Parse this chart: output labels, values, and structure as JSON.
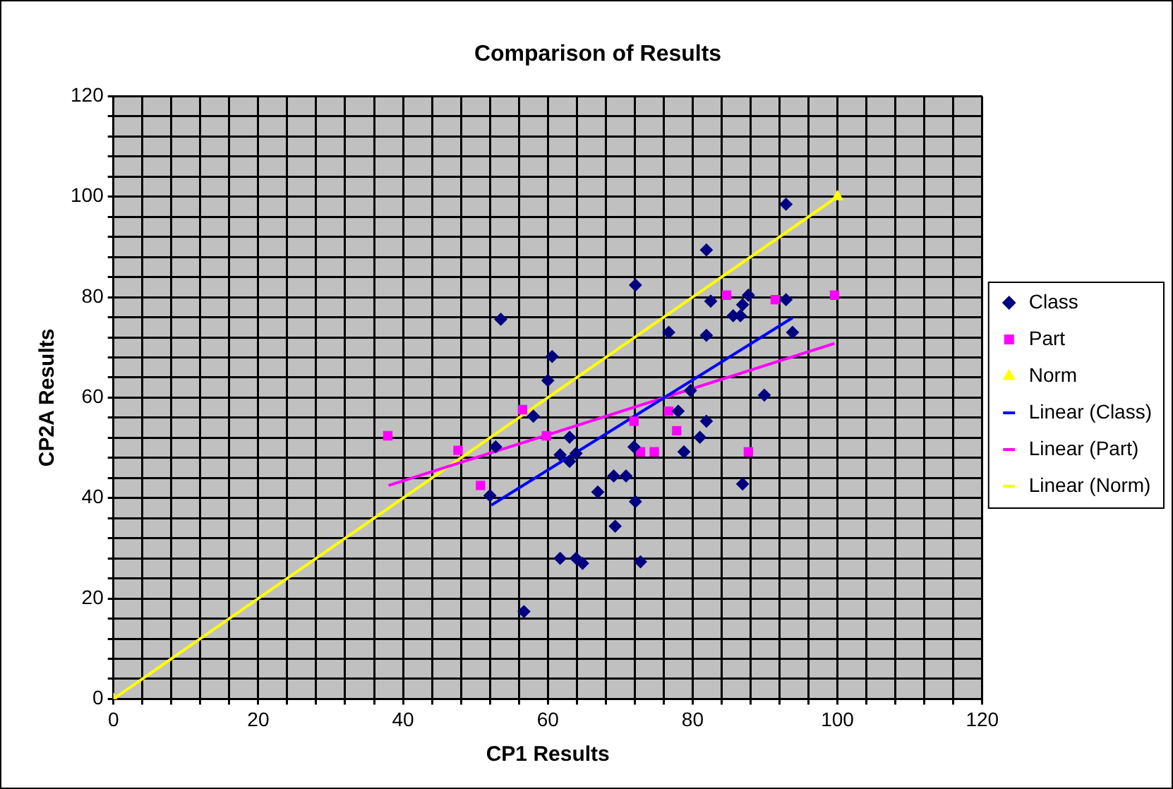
{
  "chart_data": {
    "type": "scatter",
    "title": "Comparison of Results",
    "xlabel": "CP1 Results",
    "ylabel": "CP2A Results",
    "xlim": [
      0,
      120
    ],
    "ylim": [
      0,
      120
    ],
    "xticks": [
      0,
      {
        "value": 4,
        "label": null
      },
      {
        "value": 8,
        "label": null
      },
      {
        "value": 12,
        "label": null
      },
      {
        "value": 16,
        "label": null
      },
      20,
      {
        "value": 24,
        "label": null
      },
      {
        "value": 28,
        "label": null
      },
      {
        "value": 32,
        "label": null
      },
      {
        "value": 36,
        "label": null
      },
      40,
      {
        "value": 44,
        "label": null
      },
      {
        "value": 48,
        "label": null
      },
      {
        "value": 52,
        "label": null
      },
      {
        "value": 56,
        "label": null
      },
      60,
      {
        "value": 64,
        "label": null
      },
      {
        "value": 68,
        "label": null
      },
      {
        "value": 72,
        "label": null
      },
      {
        "value": 76,
        "label": null
      },
      80,
      {
        "value": 84,
        "label": null
      },
      {
        "value": 88,
        "label": null
      },
      {
        "value": 92,
        "label": null
      },
      {
        "value": 96,
        "label": null
      },
      100,
      {
        "value": 104,
        "label": null
      },
      {
        "value": 108,
        "label": null
      },
      {
        "value": 112,
        "label": null
      },
      {
        "value": 116,
        "label": null
      },
      120
    ],
    "yticks": [
      0,
      {
        "value": 4,
        "label": null
      },
      {
        "value": 8,
        "label": null
      },
      {
        "value": 12,
        "label": null
      },
      {
        "value": 16,
        "label": null
      },
      20,
      {
        "value": 24,
        "label": null
      },
      {
        "value": 28,
        "label": null
      },
      {
        "value": 32,
        "label": null
      },
      {
        "value": 36,
        "label": null
      },
      40,
      {
        "value": 44,
        "label": null
      },
      {
        "value": 48,
        "label": null
      },
      {
        "value": 52,
        "label": null
      },
      {
        "value": 56,
        "label": null
      },
      60,
      {
        "value": 64,
        "label": null
      },
      {
        "value": 68,
        "label": null
      },
      {
        "value": 72,
        "label": null
      },
      {
        "value": 76,
        "label": null
      },
      80,
      {
        "value": 84,
        "label": null
      },
      {
        "value": 88,
        "label": null
      },
      {
        "value": 92,
        "label": null
      },
      {
        "value": 96,
        "label": null
      },
      100,
      {
        "value": 104,
        "label": null
      },
      {
        "value": 108,
        "label": null
      },
      {
        "value": 112,
        "label": null
      },
      {
        "value": 116,
        "label": null
      },
      120
    ],
    "grid": true,
    "legend": "right",
    "series": [
      {
        "name": "Class",
        "type": "scatter",
        "marker": "diamond",
        "color": "#000080",
        "x": [
          53.5,
          60.6,
          60,
          58,
          63,
          52.8,
          61.7,
          63.9,
          63,
          69.1,
          66.9,
          69.3,
          52,
          61.7,
          63.9,
          64.8,
          56.7,
          92.9,
          81.9,
          72.1,
          82.5,
          87.7,
          86.9,
          85.6,
          86.6,
          92.9,
          76.7,
          81.9,
          93.8,
          89.9,
          79.7,
          78,
          81.9,
          81,
          71.9,
          78.8,
          70.8,
          72.1,
          72.8,
          86.9
        ],
        "values": [
          75.6,
          68.2,
          63.4,
          56.3,
          52.1,
          50.2,
          48.6,
          48.9,
          47.3,
          44.4,
          41.2,
          34.4,
          40.5,
          28,
          28,
          27,
          17.4,
          98.5,
          89.4,
          82.4,
          79.2,
          80.4,
          78.5,
          76.3,
          76.3,
          79.5,
          73,
          72.4,
          73,
          60.5,
          61.4,
          57.3,
          55.3,
          52.1,
          50.2,
          49.2,
          44.4,
          39.3,
          27.3,
          42.8
        ]
      },
      {
        "name": "Part",
        "type": "scatter",
        "marker": "square",
        "color": "#ff00ff",
        "x": [
          37.9,
          47.6,
          50.7,
          56.5,
          59.8,
          71.9,
          76.7,
          77.8,
          72.8,
          74.7,
          87.7,
          84.7,
          91.4,
          99.6
        ],
        "values": [
          52.4,
          49.5,
          42.5,
          57.6,
          52.4,
          55.3,
          57.3,
          53.4,
          49.2,
          49.2,
          49.2,
          80.4,
          79.5,
          80.4
        ]
      },
      {
        "name": "Norm",
        "type": "scatter",
        "marker": "triangle",
        "color": "#ffff00",
        "x": [
          0,
          100
        ],
        "values": [
          0,
          100
        ]
      },
      {
        "name": "Linear (Class)",
        "type": "line",
        "marker": "none",
        "color": "#0000ff",
        "x": [
          52.2,
          93.8
        ],
        "values": [
          38.6,
          75.9
        ]
      },
      {
        "name": "Linear (Part)",
        "type": "line",
        "marker": "none",
        "color": "#ff00ff",
        "x": [
          38,
          99.6
        ],
        "values": [
          42.5,
          70.8
        ]
      },
      {
        "name": "Linear (Norm)",
        "type": "line",
        "marker": "none",
        "color": "#ffff00",
        "x": [
          0,
          100
        ],
        "values": [
          0,
          100
        ]
      }
    ]
  }
}
